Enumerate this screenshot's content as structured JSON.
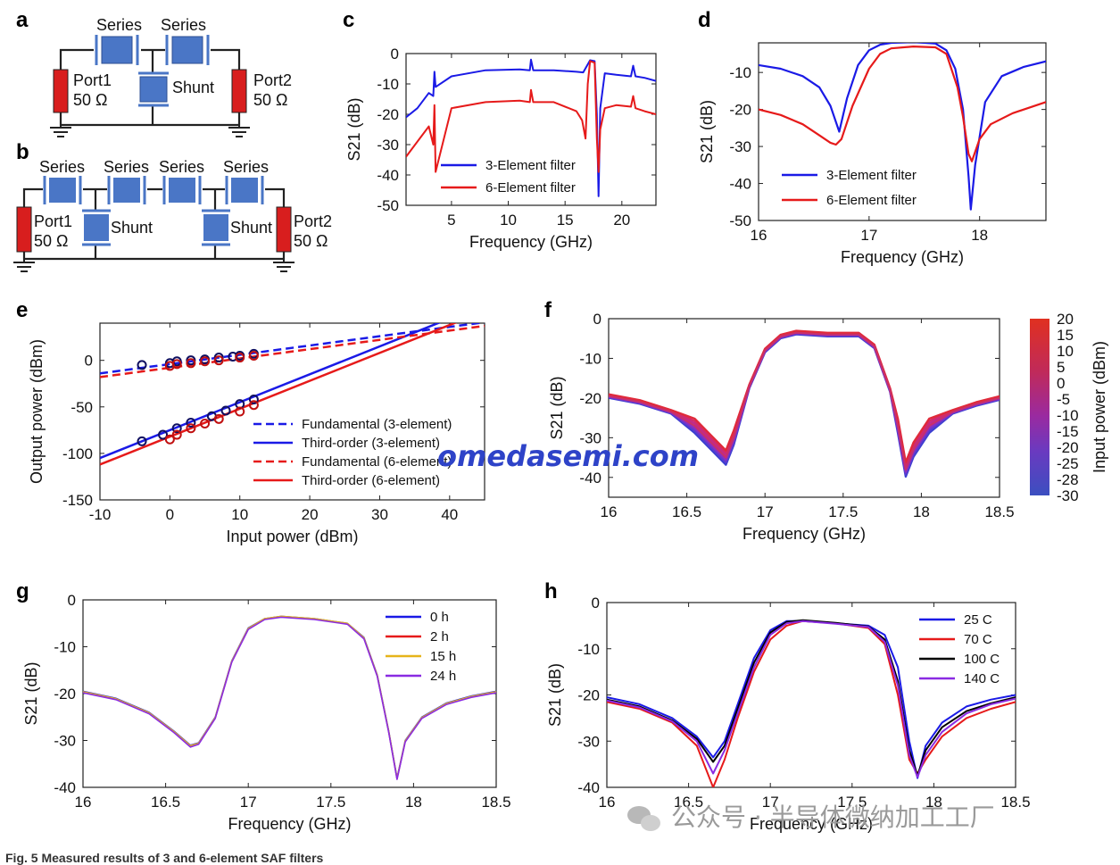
{
  "panel_labels": [
    "a",
    "b",
    "c",
    "d",
    "e",
    "f",
    "g",
    "h"
  ],
  "schematic": {
    "series_label": "Series",
    "shunt_label": "Shunt",
    "port1_label": "Port1",
    "port2_label": "Port2",
    "impedance_label": "50 Ω"
  },
  "colors": {
    "blue": "#1a1ae6",
    "red": "#e61a1a",
    "port_red": "#d81e1e",
    "resonator_blue": "#4a76c6",
    "yellow": "#e6b41a",
    "purple": "#8a2be2",
    "black": "#000000"
  },
  "watermark": {
    "site": "omedasemi.com",
    "wechat": "公众号 · 半导体微纳加工工厂"
  },
  "caption_fragment": "Fig. 5 Measured results of 3 and 6-element SAF filters",
  "chart_data": [
    {
      "panel": "c",
      "type": "line",
      "xlabel": "Frequency (GHz)",
      "ylabel": "S21 (dB)",
      "xlim": [
        1,
        23
      ],
      "ylim": [
        -50,
        0
      ],
      "xticks": [
        5,
        10,
        15,
        20
      ],
      "yticks": [
        0,
        -10,
        -20,
        -30,
        -40,
        -50
      ],
      "series": [
        {
          "name": "3-Element filter",
          "x": [
            1,
            2,
            3,
            3.4,
            3.5,
            3.6,
            5,
            8,
            11,
            11.9,
            12,
            12.2,
            14,
            16,
            16.6,
            17.2,
            17.6,
            17.8,
            17.95,
            18.1,
            18.5,
            19.5,
            20.8,
            21,
            21.2,
            22,
            23
          ],
          "y": [
            -21,
            -18,
            -13,
            -14,
            -6,
            -11,
            -7.5,
            -5.5,
            -5.2,
            -5.5,
            -2,
            -5.5,
            -5.5,
            -6,
            -6.2,
            -2.2,
            -2.5,
            -20,
            -47,
            -18,
            -6.5,
            -7,
            -7.5,
            -4,
            -7.5,
            -8,
            -9
          ]
        },
        {
          "name": "6-Element filter",
          "x": [
            1,
            2,
            3,
            3.4,
            3.5,
            3.6,
            5,
            8,
            11,
            11.9,
            12,
            12.2,
            14,
            16,
            16.5,
            16.8,
            17,
            17.2,
            17.6,
            17.8,
            17.95,
            18.1,
            18.5,
            19.5,
            20.8,
            21,
            21.2,
            22,
            23
          ],
          "y": [
            -34,
            -29,
            -24,
            -30,
            -17,
            -39,
            -18,
            -16,
            -15.5,
            -16,
            -12,
            -16,
            -16,
            -19,
            -22,
            -28,
            -10,
            -2.5,
            -3,
            -28,
            -39,
            -25,
            -18,
            -17,
            -17.5,
            -14,
            -18,
            -19,
            -20
          ]
        }
      ]
    },
    {
      "panel": "d",
      "type": "line",
      "xlabel": "Frequency (GHz)",
      "ylabel": "S21 (dB)",
      "xlim": [
        16,
        18.6
      ],
      "ylim": [
        -50,
        -2
      ],
      "xticks": [
        16,
        17,
        18
      ],
      "yticks": [
        -10,
        -20,
        -30,
        -40,
        -50
      ],
      "series": [
        {
          "name": "3-Element filter",
          "x": [
            16,
            16.2,
            16.4,
            16.55,
            16.65,
            16.73,
            16.8,
            16.9,
            17,
            17.1,
            17.2,
            17.4,
            17.6,
            17.7,
            17.78,
            17.85,
            17.9,
            17.92,
            17.96,
            18.05,
            18.2,
            18.4,
            18.6
          ],
          "y": [
            -8,
            -9,
            -11,
            -14,
            -19,
            -26,
            -17,
            -8,
            -4,
            -2.5,
            -2,
            -1.8,
            -2.2,
            -4,
            -9,
            -20,
            -38,
            -47,
            -35,
            -18,
            -11,
            -8.5,
            -7
          ]
        },
        {
          "name": "6-Element filter",
          "x": [
            16,
            16.2,
            16.4,
            16.55,
            16.65,
            16.7,
            16.75,
            16.85,
            17,
            17.1,
            17.2,
            17.4,
            17.6,
            17.7,
            17.8,
            17.85,
            17.9,
            17.93,
            18,
            18.1,
            18.3,
            18.6
          ],
          "y": [
            -20,
            -21.5,
            -24,
            -27,
            -29,
            -29.5,
            -28,
            -19,
            -9,
            -5,
            -3.5,
            -3,
            -3.2,
            -5,
            -14,
            -22,
            -32,
            -34,
            -28,
            -24,
            -21,
            -18
          ]
        }
      ]
    },
    {
      "panel": "e",
      "type": "line",
      "xlabel": "Input power (dBm)",
      "ylabel": "Output power (dBm)",
      "xlim": [
        -10,
        45
      ],
      "ylim": [
        -150,
        40
      ],
      "xticks": [
        -10,
        0,
        10,
        20,
        30,
        40
      ],
      "yticks": [
        0,
        -50,
        -100,
        -150
      ],
      "series": [
        {
          "name": "Fundamental (3-element)",
          "style": "dashed",
          "x": [
            -10,
            45
          ],
          "y": [
            -14,
            41
          ]
        },
        {
          "name": "Third-order (3-element)",
          "style": "solid",
          "x": [
            -10,
            40
          ],
          "y": [
            -105,
            45
          ]
        },
        {
          "name": "Fundamental (6-element)",
          "style": "dashed",
          "x": [
            -10,
            45
          ],
          "y": [
            -18,
            37
          ]
        },
        {
          "name": "Third-order (6-element)",
          "style": "solid",
          "x": [
            -10,
            43
          ],
          "y": [
            -112,
            47
          ]
        }
      ],
      "markers_3el_fund": {
        "x": [
          -4,
          0,
          1,
          3,
          5,
          7,
          9,
          10,
          12
        ],
        "y": [
          -5,
          -3,
          -1,
          0,
          1,
          3,
          4,
          5,
          7
        ]
      },
      "markers_3el_third": {
        "x": [
          -4,
          -1,
          1,
          3,
          6,
          8,
          10,
          12
        ],
        "y": [
          -87,
          -80,
          -73,
          -67,
          -60,
          -54,
          -47,
          -42
        ]
      },
      "markers_6el_fund": {
        "x": [
          0,
          1,
          3,
          5,
          7,
          10,
          12
        ],
        "y": [
          -6,
          -4,
          -3,
          -1,
          0,
          3,
          5
        ]
      },
      "markers_6el_third": {
        "x": [
          0,
          1,
          3,
          5,
          7,
          10,
          12
        ],
        "y": [
          -85,
          -80,
          -73,
          -68,
          -63,
          -55,
          -48
        ]
      }
    },
    {
      "panel": "f",
      "type": "line",
      "xlabel": "Frequency (GHz)",
      "ylabel": "S21 (dB)",
      "xlim": [
        16,
        18.5
      ],
      "ylim": [
        -45,
        0
      ],
      "xticks": [
        16,
        16.5,
        17,
        17.5,
        18,
        18.5
      ],
      "yticks": [
        0,
        -10,
        -20,
        -30,
        -40
      ],
      "colorbar_label": "Input power (dBm)",
      "colorbar_ticks": [
        20,
        15,
        10,
        5,
        0,
        -5,
        -10,
        -15,
        -20,
        -25,
        -28,
        -30
      ],
      "series": [
        {
          "name": "",
          "x": [
            16,
            16.2,
            16.4,
            16.55,
            16.65,
            16.75,
            16.8,
            16.9,
            17,
            17.1,
            17.2,
            17.4,
            17.6,
            17.7,
            17.8,
            17.85,
            17.9,
            17.95,
            18.05,
            18.2,
            18.35,
            18.5
          ],
          "y": [
            -19.5,
            -21,
            -23.5,
            -27,
            -31,
            -35,
            -30,
            -17,
            -8,
            -4.5,
            -3.5,
            -4,
            -4,
            -7,
            -18,
            -27,
            -38,
            -33,
            -27,
            -23.5,
            -21.5,
            -20
          ]
        }
      ]
    },
    {
      "panel": "g",
      "type": "line",
      "xlabel": "Frequency (GHz)",
      "ylabel": "S21 (dB)",
      "xlim": [
        16,
        18.5
      ],
      "ylim": [
        -40,
        0
      ],
      "xticks": [
        16,
        16.5,
        17,
        17.5,
        18,
        18.5
      ],
      "yticks": [
        0,
        -10,
        -20,
        -30,
        -40
      ],
      "series": [
        {
          "name": "0 h",
          "x": [
            16,
            16.2,
            16.4,
            16.55,
            16.65,
            16.7,
            16.8,
            16.9,
            17,
            17.1,
            17.2,
            17.4,
            17.6,
            17.7,
            17.78,
            17.85,
            17.9,
            17.95,
            18.05,
            18.2,
            18.35,
            18.5
          ],
          "y": [
            -19.5,
            -21,
            -24,
            -28,
            -31,
            -30.5,
            -25,
            -13,
            -6,
            -4,
            -3.5,
            -4,
            -5,
            -8,
            -16,
            -28,
            -38,
            -30,
            -25,
            -22,
            -20.5,
            -19.5
          ]
        },
        {
          "name": "2 h",
          "x": [
            16,
            16.2,
            16.4,
            16.55,
            16.65,
            16.7,
            16.8,
            16.9,
            17,
            17.1,
            17.2,
            17.4,
            17.6,
            17.7,
            17.78,
            17.85,
            17.9,
            17.95,
            18.05,
            18.2,
            18.35,
            18.5
          ],
          "y": [
            -19.7,
            -21.2,
            -24.2,
            -28.2,
            -31.3,
            -30.7,
            -25.2,
            -13.2,
            -6.2,
            -4.1,
            -3.6,
            -4.1,
            -5.1,
            -8.2,
            -16.2,
            -28.2,
            -38.2,
            -30.2,
            -25.2,
            -22.2,
            -20.7,
            -19.7
          ]
        },
        {
          "name": "15 h",
          "x": [
            16,
            16.2,
            16.4,
            16.55,
            16.65,
            16.7,
            16.8,
            16.9,
            17,
            17.1,
            17.2,
            17.4,
            17.6,
            17.7,
            17.78,
            17.85,
            17.9,
            17.95,
            18.05,
            18.2,
            18.35,
            18.5
          ],
          "y": [
            -19.6,
            -21.1,
            -24.1,
            -28.1,
            -31.1,
            -30.6,
            -25.1,
            -13.1,
            -6.1,
            -4,
            -3.5,
            -4,
            -5,
            -8.1,
            -16.1,
            -28.1,
            -38.1,
            -30.1,
            -25.1,
            -22.1,
            -20.6,
            -19.6
          ]
        },
        {
          "name": "24 h",
          "x": [
            16,
            16.2,
            16.4,
            16.55,
            16.65,
            16.7,
            16.8,
            16.9,
            17,
            17.1,
            17.2,
            17.4,
            17.6,
            17.7,
            17.78,
            17.85,
            17.9,
            17.95,
            18.05,
            18.2,
            18.35,
            18.5
          ],
          "y": [
            -19.8,
            -21.3,
            -24.3,
            -28.3,
            -31.4,
            -30.8,
            -25.3,
            -13.3,
            -6.3,
            -4.2,
            -3.7,
            -4.2,
            -5.2,
            -8.3,
            -16.3,
            -28.3,
            -38.3,
            -30.3,
            -25.3,
            -22.3,
            -20.8,
            -19.8
          ]
        }
      ]
    },
    {
      "panel": "h",
      "type": "line",
      "xlabel": "Frequency (GHz)",
      "ylabel": "S21 (dB)",
      "xlim": [
        16,
        18.5
      ],
      "ylim": [
        -40,
        0
      ],
      "xticks": [
        16,
        16.5,
        17,
        17.5,
        18,
        18.5
      ],
      "yticks": [
        0,
        -10,
        -20,
        -30,
        -40
      ],
      "series": [
        {
          "name": "25 C",
          "x": [
            16,
            16.2,
            16.4,
            16.55,
            16.65,
            16.72,
            16.8,
            16.9,
            17,
            17.1,
            17.2,
            17.4,
            17.6,
            17.7,
            17.78,
            17.85,
            17.9,
            17.95,
            18.05,
            18.2,
            18.35,
            18.5
          ],
          "y": [
            -20.5,
            -22,
            -25,
            -29,
            -33.5,
            -30,
            -22,
            -12,
            -6,
            -4,
            -4,
            -4.5,
            -5,
            -7,
            -14,
            -30,
            -38,
            -31,
            -26,
            -22.5,
            -21,
            -20
          ]
        },
        {
          "name": "70 C",
          "x": [
            16,
            16.2,
            16.4,
            16.55,
            16.65,
            16.72,
            16.8,
            16.9,
            17,
            17.1,
            17.2,
            17.4,
            17.6,
            17.7,
            17.78,
            17.85,
            17.9,
            17.95,
            18.05,
            18.2,
            18.35,
            18.5
          ],
          "y": [
            -21.5,
            -23,
            -26,
            -31,
            -40,
            -34,
            -25,
            -15,
            -8,
            -5,
            -4,
            -4.5,
            -5.5,
            -9,
            -20,
            -34,
            -37,
            -34,
            -29,
            -25,
            -23,
            -21.5
          ]
        },
        {
          "name": "100 C",
          "x": [
            16,
            16.2,
            16.4,
            16.55,
            16.65,
            16.72,
            16.8,
            16.9,
            17,
            17.1,
            17.2,
            17.4,
            17.6,
            17.7,
            17.78,
            17.85,
            17.9,
            17.95,
            18.05,
            18.2,
            18.35,
            18.5
          ],
          "y": [
            -21,
            -22.5,
            -25.5,
            -29.5,
            -34.5,
            -31,
            -23,
            -13,
            -6.5,
            -4.2,
            -3.8,
            -4.4,
            -5.2,
            -8,
            -17,
            -32,
            -37.5,
            -32,
            -27,
            -23.5,
            -21.8,
            -20.5
          ]
        },
        {
          "name": "140 C",
          "x": [
            16,
            16.2,
            16.4,
            16.55,
            16.65,
            16.72,
            16.8,
            16.9,
            17,
            17.1,
            17.2,
            17.4,
            17.6,
            17.7,
            17.78,
            17.85,
            17.9,
            17.95,
            18.05,
            18.2,
            18.35,
            18.5
          ],
          "y": [
            -21.2,
            -22.7,
            -25.7,
            -30,
            -37,
            -32,
            -24,
            -14,
            -7,
            -4.5,
            -4,
            -4.6,
            -5.3,
            -8.5,
            -18,
            -33,
            -37.8,
            -33,
            -28,
            -24,
            -22,
            -20.8
          ]
        }
      ]
    }
  ]
}
